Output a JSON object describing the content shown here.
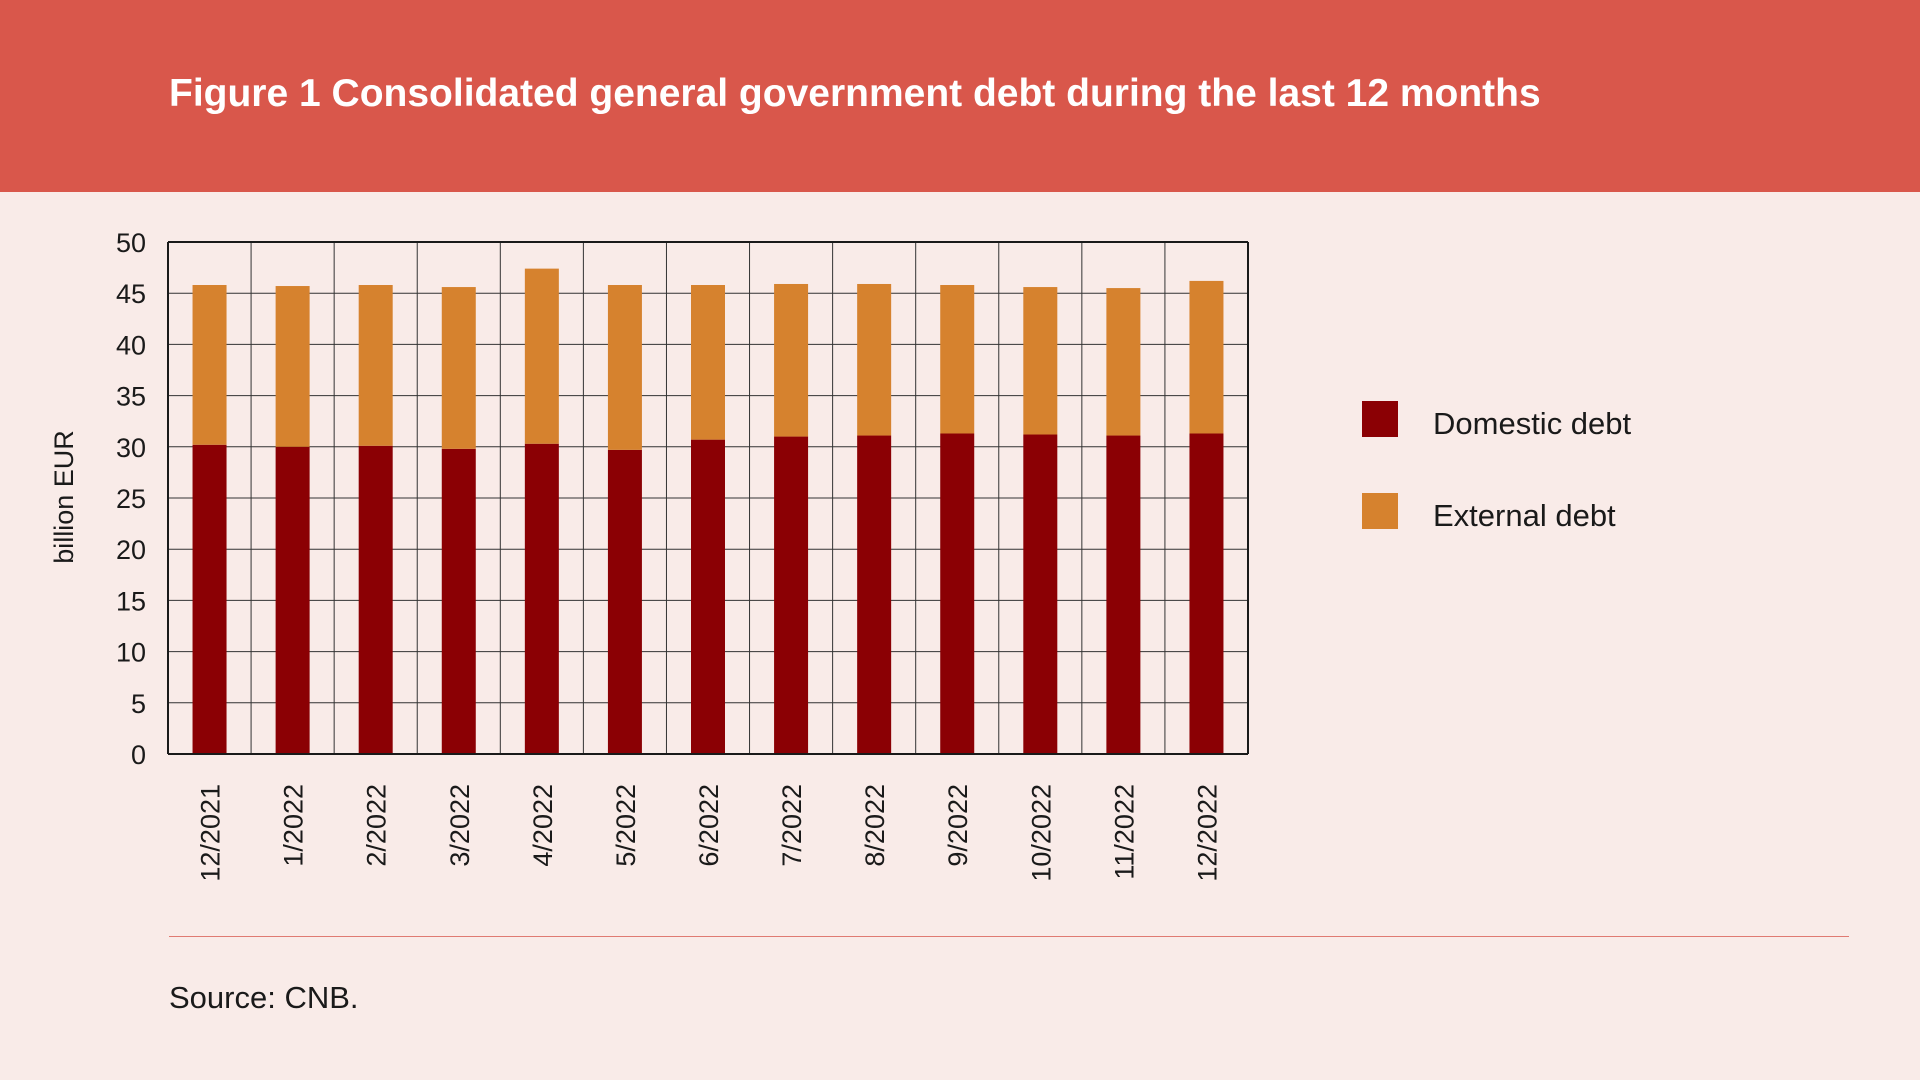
{
  "header": {
    "title": "Figure 1 Consolidated general government debt during the last 12 months"
  },
  "footer": {
    "source": "Source: CNB."
  },
  "chart_data": {
    "type": "bar",
    "stacked": true,
    "categories": [
      "12/2021",
      "1/2022",
      "2/2022",
      "3/2022",
      "4/2022",
      "5/2022",
      "6/2022",
      "7/2022",
      "8/2022",
      "9/2022",
      "10/2022",
      "11/2022",
      "12/2022"
    ],
    "series": [
      {
        "name": "Domestic debt",
        "color": "#8b0004",
        "values": [
          30.2,
          30.0,
          30.1,
          29.8,
          30.3,
          29.7,
          30.7,
          31.0,
          31.1,
          31.3,
          31.2,
          31.1,
          31.3
        ]
      },
      {
        "name": "External debt",
        "color": "#d6822e",
        "values": [
          15.6,
          15.7,
          15.7,
          15.8,
          17.1,
          16.1,
          15.1,
          14.9,
          14.8,
          14.5,
          14.4,
          14.4,
          14.9
        ]
      }
    ],
    "ylabel": "billion EUR",
    "ylim": [
      0,
      50
    ],
    "yticks": [
      0,
      5,
      10,
      15,
      20,
      25,
      30,
      35,
      40,
      45,
      50
    ],
    "grid": true,
    "legend_position": "right"
  }
}
